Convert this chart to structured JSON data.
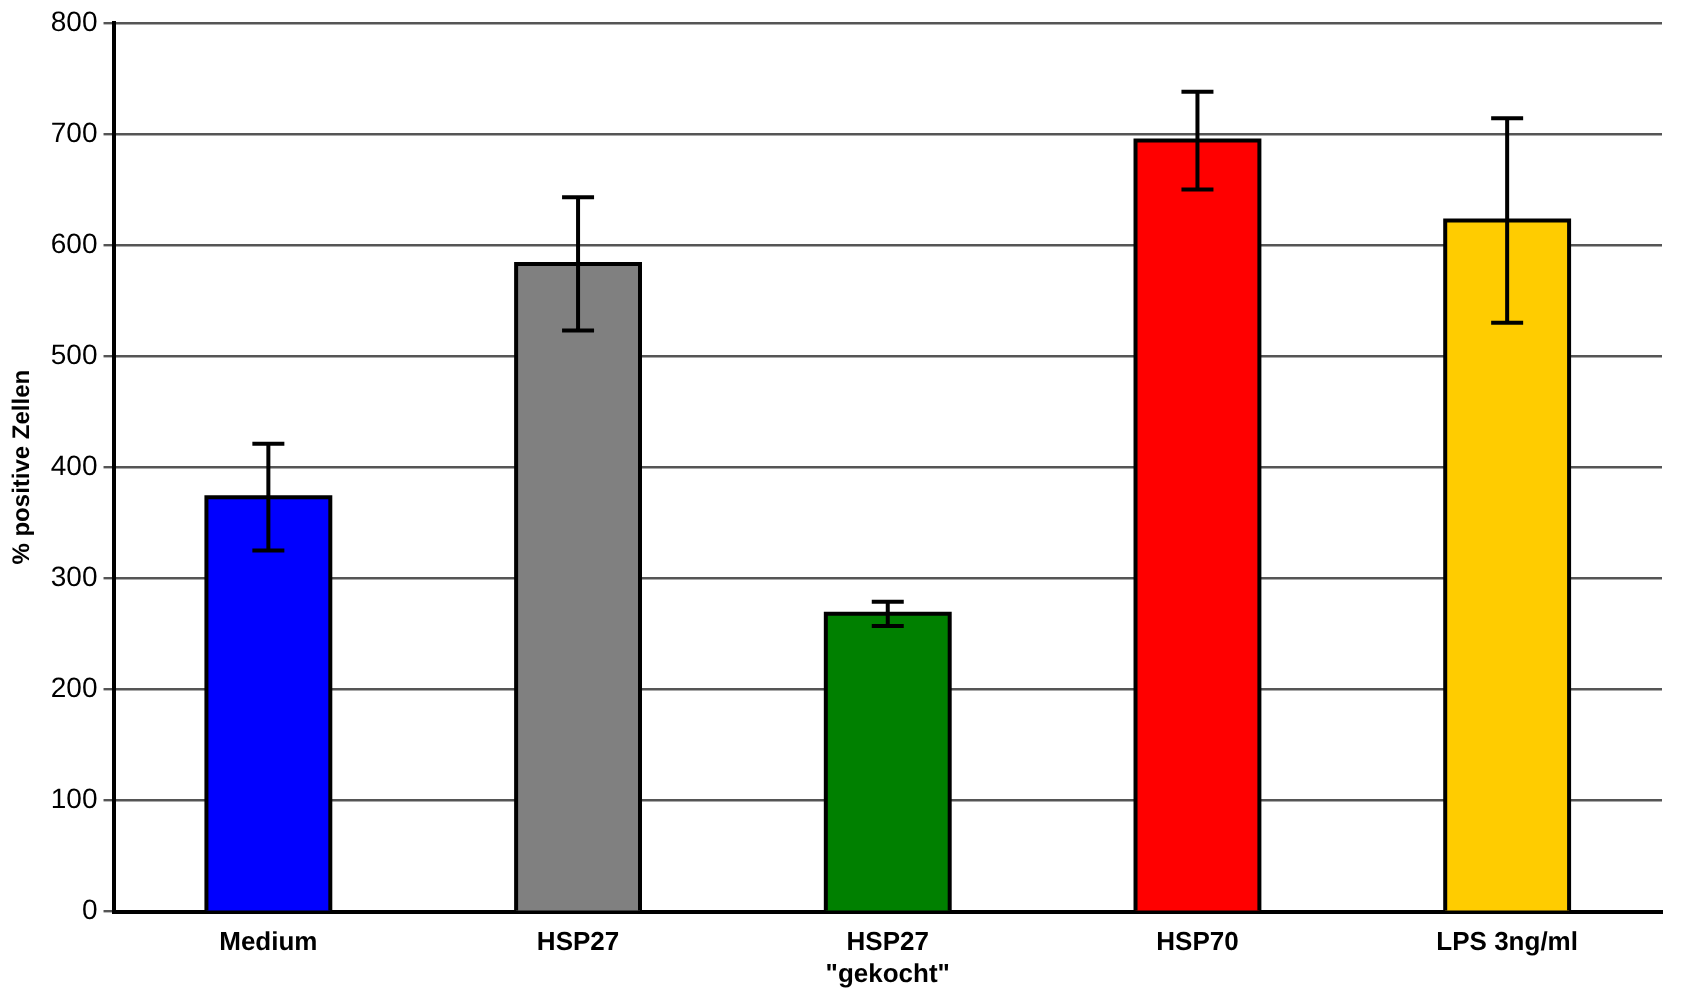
{
  "chart_data": {
    "type": "bar",
    "ylabel": "% positive Zellen",
    "categories": [
      "Medium",
      "HSP27",
      "HSP27\n\"gekocht\"",
      "HSP70",
      "LPS 3ng/ml"
    ],
    "values": [
      373,
      583,
      268,
      694,
      622
    ],
    "colors": [
      "#0000ff",
      "#808080",
      "#008000",
      "#ff0000",
      "#ffcc00"
    ],
    "errors": [
      48,
      60,
      11,
      44,
      92
    ],
    "ylim": [
      0,
      800
    ],
    "yticks": [
      0,
      100,
      200,
      300,
      400,
      500,
      600,
      700,
      800
    ],
    "grid": "y",
    "legend": false
  }
}
